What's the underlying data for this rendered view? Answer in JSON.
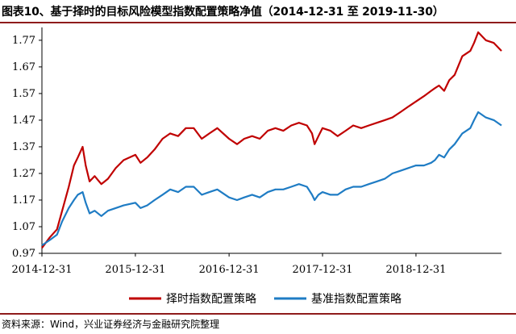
{
  "title": "图表10、基于择时的目标风险模型指数配置策略净值（2014-12-31 至 2019-11-30）",
  "source": "资料来源：Wind，兴业证券经济与金融研究院整理",
  "colors": {
    "accent_rule": "#8e1b1b",
    "series_red": "#c00000",
    "series_blue": "#1f7cc4"
  },
  "chart_data": {
    "type": "line",
    "title": "图表10、基于择时的目标风险模型指数配置策略净值（2014-12-31 至 2019-11-30）",
    "xlabel": "",
    "ylabel": "",
    "x_ticks": [
      "2014-12-31",
      "2015-12-31",
      "2016-12-31",
      "2017-12-31",
      "2018-12-31"
    ],
    "y_ticks": [
      "0.97",
      "1.07",
      "1.17",
      "1.27",
      "1.37",
      "1.47",
      "1.57",
      "1.67",
      "1.77"
    ],
    "ylim": [
      0.97,
      1.8
    ],
    "xlim": [
      "2014-12-31",
      "2019-11-30"
    ],
    "grid": false,
    "legend_position": "bottom",
    "series": [
      {
        "name": "择时指数配置策略",
        "color": "#c00000",
        "points": [
          [
            "2014-12-31",
            0.99
          ],
          [
            "2015-01-31",
            1.03
          ],
          [
            "2015-02-28",
            1.06
          ],
          [
            "2015-03-20",
            1.13
          ],
          [
            "2015-04-15",
            1.22
          ],
          [
            "2015-05-05",
            1.3
          ],
          [
            "2015-05-20",
            1.33
          ],
          [
            "2015-06-08",
            1.37
          ],
          [
            "2015-06-20",
            1.3
          ],
          [
            "2015-07-05",
            1.24
          ],
          [
            "2015-07-25",
            1.26
          ],
          [
            "2015-08-20",
            1.23
          ],
          [
            "2015-09-15",
            1.25
          ],
          [
            "2015-10-15",
            1.29
          ],
          [
            "2015-11-15",
            1.32
          ],
          [
            "2015-12-31",
            1.34
          ],
          [
            "2016-01-20",
            1.31
          ],
          [
            "2016-02-15",
            1.33
          ],
          [
            "2016-03-15",
            1.36
          ],
          [
            "2016-04-15",
            1.4
          ],
          [
            "2016-05-15",
            1.42
          ],
          [
            "2016-06-15",
            1.41
          ],
          [
            "2016-07-15",
            1.44
          ],
          [
            "2016-08-15",
            1.44
          ],
          [
            "2016-09-15",
            1.4
          ],
          [
            "2016-10-15",
            1.42
          ],
          [
            "2016-11-15",
            1.44
          ],
          [
            "2016-12-31",
            1.4
          ],
          [
            "2017-01-31",
            1.38
          ],
          [
            "2017-02-28",
            1.4
          ],
          [
            "2017-03-31",
            1.41
          ],
          [
            "2017-04-30",
            1.4
          ],
          [
            "2017-05-31",
            1.43
          ],
          [
            "2017-06-30",
            1.44
          ],
          [
            "2017-07-31",
            1.43
          ],
          [
            "2017-08-31",
            1.45
          ],
          [
            "2017-09-30",
            1.46
          ],
          [
            "2017-10-31",
            1.45
          ],
          [
            "2017-11-20",
            1.42
          ],
          [
            "2017-11-30",
            1.38
          ],
          [
            "2017-12-15",
            1.41
          ],
          [
            "2017-12-31",
            1.44
          ],
          [
            "2018-01-31",
            1.43
          ],
          [
            "2018-02-28",
            1.41
          ],
          [
            "2018-03-31",
            1.43
          ],
          [
            "2018-04-30",
            1.45
          ],
          [
            "2018-05-31",
            1.44
          ],
          [
            "2018-06-30",
            1.45
          ],
          [
            "2018-07-31",
            1.46
          ],
          [
            "2018-08-31",
            1.47
          ],
          [
            "2018-09-30",
            1.48
          ],
          [
            "2018-10-31",
            1.5
          ],
          [
            "2018-11-30",
            1.52
          ],
          [
            "2018-12-31",
            1.54
          ],
          [
            "2019-01-31",
            1.56
          ],
          [
            "2019-02-28",
            1.58
          ],
          [
            "2019-03-15",
            1.59
          ],
          [
            "2019-03-31",
            1.6
          ],
          [
            "2019-04-20",
            1.58
          ],
          [
            "2019-05-10",
            1.62
          ],
          [
            "2019-05-31",
            1.64
          ],
          [
            "2019-06-30",
            1.71
          ],
          [
            "2019-07-31",
            1.73
          ],
          [
            "2019-08-15",
            1.76
          ],
          [
            "2019-08-31",
            1.8
          ],
          [
            "2019-09-30",
            1.77
          ],
          [
            "2019-10-31",
            1.76
          ],
          [
            "2019-11-30",
            1.73
          ]
        ]
      },
      {
        "name": "基准指数配置策略",
        "color": "#1f7cc4",
        "points": [
          [
            "2014-12-31",
            1.0
          ],
          [
            "2015-01-31",
            1.02
          ],
          [
            "2015-02-28",
            1.04
          ],
          [
            "2015-03-20",
            1.09
          ],
          [
            "2015-04-15",
            1.14
          ],
          [
            "2015-05-05",
            1.17
          ],
          [
            "2015-05-20",
            1.19
          ],
          [
            "2015-06-08",
            1.2
          ],
          [
            "2015-06-20",
            1.16
          ],
          [
            "2015-07-05",
            1.12
          ],
          [
            "2015-07-25",
            1.13
          ],
          [
            "2015-08-20",
            1.11
          ],
          [
            "2015-09-15",
            1.13
          ],
          [
            "2015-10-15",
            1.14
          ],
          [
            "2015-11-15",
            1.15
          ],
          [
            "2015-12-31",
            1.16
          ],
          [
            "2016-01-20",
            1.14
          ],
          [
            "2016-02-15",
            1.15
          ],
          [
            "2016-03-15",
            1.17
          ],
          [
            "2016-04-15",
            1.19
          ],
          [
            "2016-05-15",
            1.21
          ],
          [
            "2016-06-15",
            1.2
          ],
          [
            "2016-07-15",
            1.22
          ],
          [
            "2016-08-15",
            1.22
          ],
          [
            "2016-09-15",
            1.19
          ],
          [
            "2016-10-15",
            1.2
          ],
          [
            "2016-11-15",
            1.21
          ],
          [
            "2016-12-31",
            1.18
          ],
          [
            "2017-01-31",
            1.17
          ],
          [
            "2017-02-28",
            1.18
          ],
          [
            "2017-03-31",
            1.19
          ],
          [
            "2017-04-30",
            1.18
          ],
          [
            "2017-05-31",
            1.2
          ],
          [
            "2017-06-30",
            1.21
          ],
          [
            "2017-07-31",
            1.21
          ],
          [
            "2017-08-31",
            1.22
          ],
          [
            "2017-09-30",
            1.23
          ],
          [
            "2017-10-31",
            1.22
          ],
          [
            "2017-11-20",
            1.19
          ],
          [
            "2017-11-30",
            1.17
          ],
          [
            "2017-12-15",
            1.19
          ],
          [
            "2017-12-31",
            1.2
          ],
          [
            "2018-01-31",
            1.19
          ],
          [
            "2018-02-28",
            1.19
          ],
          [
            "2018-03-31",
            1.21
          ],
          [
            "2018-04-30",
            1.22
          ],
          [
            "2018-05-31",
            1.22
          ],
          [
            "2018-06-30",
            1.23
          ],
          [
            "2018-07-31",
            1.24
          ],
          [
            "2018-08-31",
            1.25
          ],
          [
            "2018-09-30",
            1.27
          ],
          [
            "2018-10-31",
            1.28
          ],
          [
            "2018-11-30",
            1.29
          ],
          [
            "2018-12-31",
            1.3
          ],
          [
            "2019-01-31",
            1.3
          ],
          [
            "2019-02-28",
            1.31
          ],
          [
            "2019-03-15",
            1.32
          ],
          [
            "2019-03-31",
            1.34
          ],
          [
            "2019-04-20",
            1.33
          ],
          [
            "2019-05-10",
            1.36
          ],
          [
            "2019-05-31",
            1.38
          ],
          [
            "2019-06-30",
            1.42
          ],
          [
            "2019-07-31",
            1.44
          ],
          [
            "2019-08-15",
            1.47
          ],
          [
            "2019-08-31",
            1.5
          ],
          [
            "2019-09-30",
            1.48
          ],
          [
            "2019-10-31",
            1.47
          ],
          [
            "2019-11-30",
            1.45
          ]
        ]
      }
    ]
  }
}
